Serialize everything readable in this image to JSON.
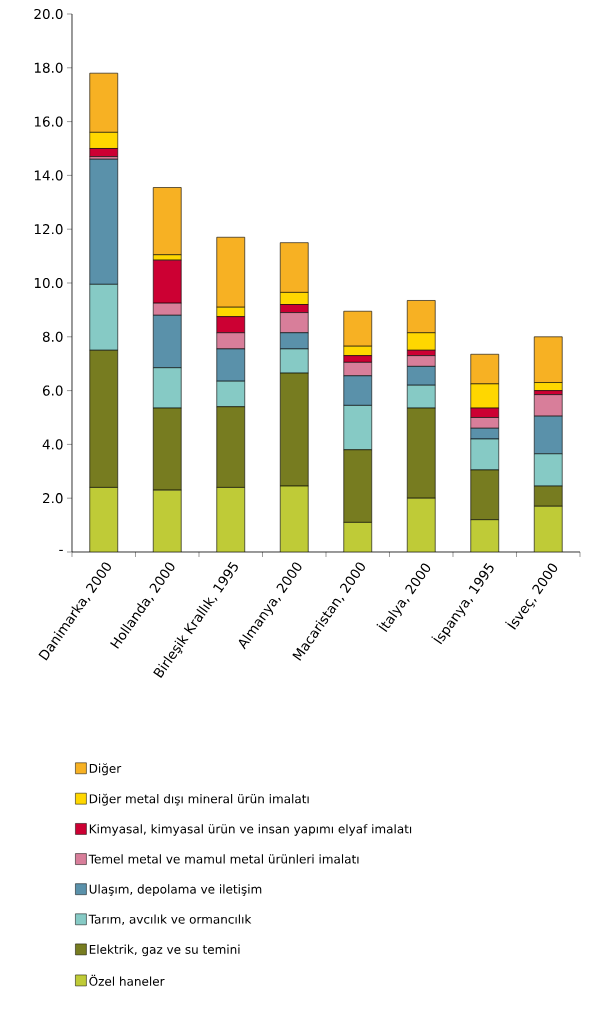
{
  "chart_data": {
    "type": "bar",
    "stacked": true,
    "legend": "bottom",
    "categories": [
      "Danimarka, 2000",
      "Hollanda, 2000",
      "Birleşik Krallık, 1995",
      "Almanya, 2000",
      "Macaristan, 2000",
      "İtalya, 2000",
      "İspanya, 1995",
      "İsveç, 2000"
    ],
    "ylim": [
      0,
      20
    ],
    "yticks": [
      {
        "value": 0,
        "label": "-"
      },
      {
        "value": 2,
        "label": "2.0"
      },
      {
        "value": 4,
        "label": "4.0"
      },
      {
        "value": 6,
        "label": "6.0"
      },
      {
        "value": 8,
        "label": "8.0"
      },
      {
        "value": 10,
        "label": "10.0"
      },
      {
        "value": 12,
        "label": "12.0"
      },
      {
        "value": 14,
        "label": "14.0"
      },
      {
        "value": 16,
        "label": "16.0"
      },
      {
        "value": 18,
        "label": "18.0"
      },
      {
        "value": 20,
        "label": "20.0"
      }
    ],
    "series": [
      {
        "name": "Özel haneler",
        "color": "#bfcb37",
        "values": [
          2.4,
          2.3,
          2.4,
          2.45,
          1.1,
          2.0,
          1.2,
          1.7
        ]
      },
      {
        "name": "Elektrik, gaz ve su temini",
        "color": "#777c20",
        "values": [
          5.1,
          3.05,
          3.0,
          4.2,
          2.7,
          3.35,
          1.85,
          0.75
        ]
      },
      {
        "name": "Tarım, avcılık ve ormancılık",
        "color": "#86cac5",
        "values": [
          2.45,
          1.5,
          0.95,
          0.9,
          1.65,
          0.85,
          1.15,
          1.2
        ]
      },
      {
        "name": "Ulaşım, depolama ve iletişim",
        "color": "#5a91aa",
        "values": [
          4.65,
          1.95,
          1.2,
          0.6,
          1.1,
          0.7,
          0.4,
          1.4
        ]
      },
      {
        "name": "Temel metal ve mamul metal ürünleri imalatı",
        "color": "#d87e9a",
        "values": [
          0.1,
          0.45,
          0.6,
          0.75,
          0.5,
          0.4,
          0.4,
          0.8
        ]
      },
      {
        "name": "Kimyasal, kimyasal ürün ve insan yapımı elyaf imalatı",
        "color": "#cc0033",
        "values": [
          0.3,
          1.6,
          0.6,
          0.3,
          0.25,
          0.2,
          0.35,
          0.15
        ]
      },
      {
        "name": "Diğer metal dışı mineral ürün imalatı",
        "color": "#ffd700",
        "values": [
          0.6,
          0.2,
          0.35,
          0.45,
          0.35,
          0.65,
          0.9,
          0.3
        ]
      },
      {
        "name": "Diğer",
        "color": "#f7b123",
        "values": [
          2.2,
          2.5,
          2.6,
          1.85,
          1.3,
          1.2,
          1.1,
          1.7
        ]
      }
    ]
  }
}
